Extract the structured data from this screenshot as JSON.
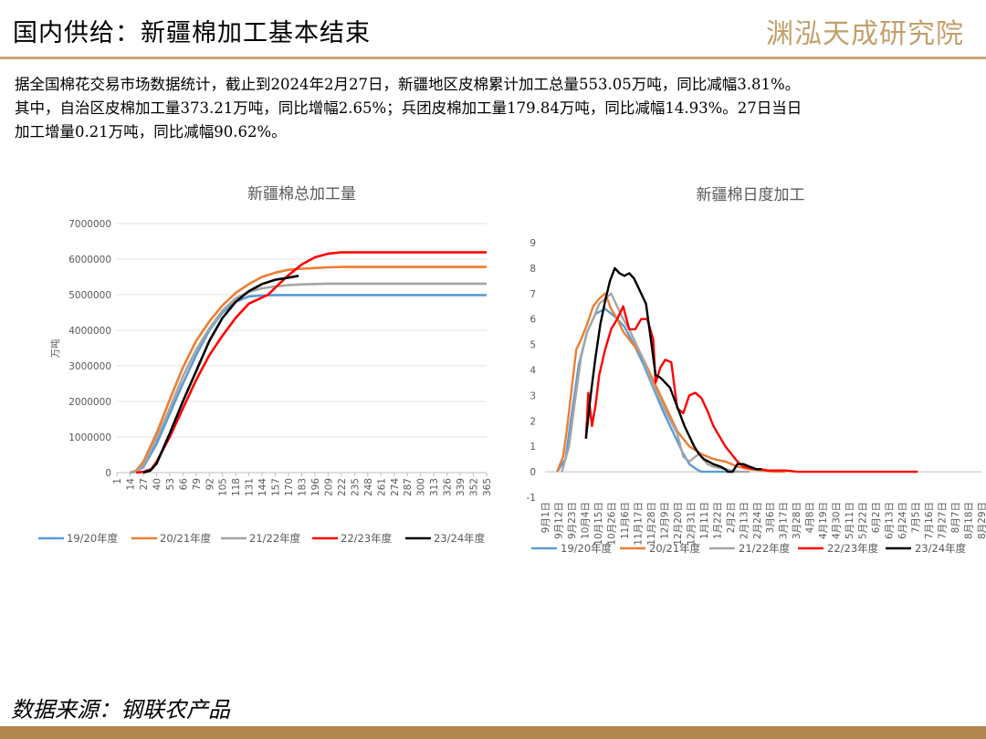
{
  "header": {
    "title": "国内供给：新疆棉加工基本结束",
    "logo_text": "渊泓天成研究院"
  },
  "summary": {
    "line1": "据全国棉花交易市场数据统计，截止到2024年2月27日，新疆地区皮棉累计加工总量553.05万吨，同比减幅3.81%。",
    "line2": "其中，自治区皮棉加工量373.21万吨，同比增幅2.65%；兵团皮棉加工量179.84万吨，同比减幅14.93%。27日当日",
    "line3": "加工增量0.21万吨，同比减幅90.62%。"
  },
  "source": "数据来源：钢联农产品",
  "colors": {
    "19/20年度": "#5b9bd5",
    "20/21年度": "#ed7d31",
    "21/22年度": "#a5a5a5",
    "22/23年度": "#ff0000",
    "23/24年度": "#000000",
    "brand": "#c7a574"
  },
  "chart_data": [
    {
      "type": "line",
      "title": "新疆棉总加工量",
      "ylabel": "万吨",
      "ylim": [
        0,
        7000000
      ],
      "yticks": [
        "7000000",
        "6000000",
        "5000000",
        "4000000",
        "3000000",
        "2000000",
        "1000000",
        "0"
      ],
      "xlim": [
        1,
        365
      ],
      "xticks": [
        "1",
        "14",
        "27",
        "40",
        "53",
        "66",
        "79",
        "92",
        "105",
        "118",
        "131",
        "144",
        "157",
        "170",
        "183",
        "196",
        "209",
        "222",
        "235",
        "248",
        "261",
        "274",
        "287",
        "300",
        "313",
        "326",
        "339",
        "352",
        "365"
      ],
      "legend_position": "bottom",
      "series": [
        {
          "name": "19/20年度",
          "x": [
            14,
            20,
            27,
            40,
            53,
            66,
            79,
            92,
            105,
            118,
            131,
            144,
            157,
            365
          ],
          "y": [
            0,
            30000,
            150000,
            800000,
            1650000,
            2500000,
            3300000,
            4000000,
            4500000,
            4800000,
            4950000,
            4980000,
            4990000,
            4990000
          ]
        },
        {
          "name": "20/21年度",
          "x": [
            14,
            20,
            27,
            40,
            53,
            66,
            79,
            92,
            105,
            118,
            131,
            144,
            157,
            170,
            183,
            196,
            209,
            222,
            365
          ],
          "y": [
            0,
            50000,
            300000,
            1100000,
            2050000,
            2950000,
            3700000,
            4250000,
            4700000,
            5050000,
            5300000,
            5500000,
            5620000,
            5700000,
            5730000,
            5750000,
            5770000,
            5780000,
            5780000
          ]
        },
        {
          "name": "21/22年度",
          "x": [
            14,
            20,
            27,
            40,
            53,
            66,
            79,
            92,
            105,
            118,
            131,
            144,
            157,
            170,
            183,
            196,
            209,
            365
          ],
          "y": [
            0,
            20000,
            200000,
            950000,
            1800000,
            2700000,
            3450000,
            4050000,
            4550000,
            4900000,
            5080000,
            5180000,
            5230000,
            5270000,
            5290000,
            5300000,
            5310000,
            5310000
          ]
        },
        {
          "name": "22/23年度",
          "x": [
            20,
            27,
            35,
            40,
            53,
            66,
            79,
            92,
            105,
            118,
            131,
            144,
            150,
            157,
            170,
            183,
            196,
            209,
            222,
            365
          ],
          "y": [
            0,
            20000,
            100000,
            300000,
            1000000,
            1800000,
            2600000,
            3300000,
            3850000,
            4350000,
            4750000,
            4920000,
            5000000,
            5200000,
            5550000,
            5850000,
            6050000,
            6150000,
            6190000,
            6190000
          ]
        },
        {
          "name": "23/24年度",
          "x": [
            27,
            34,
            40,
            53,
            66,
            79,
            92,
            105,
            118,
            131,
            144,
            157,
            170,
            180
          ],
          "y": [
            0,
            60000,
            250000,
            1100000,
            2000000,
            2850000,
            3700000,
            4350000,
            4800000,
            5100000,
            5300000,
            5420000,
            5480000,
            5530500
          ]
        }
      ]
    },
    {
      "type": "line",
      "title": "新疆棉日度加工",
      "ylim": [
        -1,
        9
      ],
      "yticks": [
        "9",
        "8",
        "7",
        "6",
        "5",
        "4",
        "3",
        "2",
        "1",
        "0",
        "-1"
      ],
      "xticks": [
        "9月1日",
        "9月12日",
        "9月23日",
        "10月4日",
        "10月15日",
        "10月26日",
        "11月6日",
        "11月17日",
        "11月28日",
        "12月9日",
        "12月20日",
        "12月31日",
        "1月11日",
        "1月22日",
        "2月2日",
        "2月13日",
        "2月24日",
        "3月6日",
        "3月17日",
        "3月28日",
        "4月8日",
        "4月19日",
        "4月30日",
        "5月11日",
        "5月22日",
        "6月2日",
        "6月13日",
        "6月24日",
        "7月5日",
        "7月16日",
        "7月27日",
        "8月7日",
        "8月18日",
        "8月29日"
      ],
      "legend_position": "bottom",
      "series": [
        {
          "name": "19/20年度",
          "x": [
            10,
            17,
            22,
            28,
            35,
            42,
            50,
            58,
            66,
            74,
            82,
            90,
            98,
            106,
            114,
            120,
            126,
            130,
            140,
            150,
            160
          ],
          "y": [
            0,
            0.5,
            2.2,
            4.2,
            5.5,
            6.2,
            6.4,
            6.1,
            5.7,
            5.0,
            4.2,
            3.3,
            2.4,
            1.6,
            0.8,
            0.3,
            0.1,
            0,
            0,
            0,
            0
          ]
        },
        {
          "name": "20/21年度",
          "x": [
            10,
            15,
            18,
            22,
            26,
            30,
            35,
            40,
            45,
            50,
            55,
            60,
            65,
            70,
            80,
            90,
            100,
            110,
            120,
            130,
            140,
            150,
            160,
            170,
            180,
            190,
            200
          ],
          "y": [
            0,
            0.6,
            1.6,
            3.2,
            4.8,
            5.2,
            5.8,
            6.5,
            6.8,
            7.0,
            6.4,
            6.0,
            5.5,
            5.2,
            4.6,
            3.6,
            2.6,
            1.6,
            1.0,
            0.7,
            0.5,
            0.4,
            0.2,
            0.1,
            0.05,
            0,
            0
          ]
        },
        {
          "name": "21/22年度",
          "x": [
            14,
            20,
            25,
            30,
            35,
            40,
            45,
            50,
            55,
            60,
            65,
            70,
            80,
            90,
            100,
            110,
            115,
            120,
            128,
            135,
            140,
            150,
            160,
            170
          ],
          "y": [
            0,
            1.0,
            2.8,
            4.5,
            5.5,
            6.0,
            6.6,
            6.8,
            7.0,
            6.5,
            6.0,
            5.6,
            4.6,
            3.4,
            2.4,
            1.5,
            0.6,
            0.4,
            0.7,
            0.3,
            0.2,
            0.1,
            0,
            0
          ]
        },
        {
          "name": "22/23年度",
          "x": [
            34,
            36,
            39,
            42,
            45,
            50,
            55,
            60,
            65,
            70,
            75,
            80,
            85,
            90,
            92,
            96,
            100,
            105,
            110,
            115,
            120,
            125,
            130,
            135,
            140,
            145,
            150,
            155,
            160,
            165,
            170,
            175,
            180,
            185,
            190,
            195,
            200,
            210,
            220,
            240,
            260,
            280,
            310
          ],
          "y": [
            1.3,
            3.1,
            1.8,
            2.6,
            3.8,
            4.8,
            5.6,
            6.0,
            6.5,
            5.6,
            5.6,
            6.0,
            6.0,
            5.2,
            3.5,
            4.1,
            4.4,
            4.3,
            2.5,
            2.3,
            3.0,
            3.1,
            2.9,
            2.4,
            1.8,
            1.4,
            1.0,
            0.7,
            0.4,
            0.2,
            0.15,
            0.1,
            0.1,
            0.05,
            0.05,
            0.05,
            0.05,
            0,
            0,
            0,
            0,
            0,
            0
          ]
        },
        {
          "name": "23/24年度",
          "x": [
            34,
            38,
            42,
            46,
            50,
            54,
            58,
            62,
            66,
            70,
            74,
            78,
            80,
            84,
            88,
            92,
            96,
            100,
            104,
            108,
            112,
            116,
            120,
            124,
            128,
            132,
            136,
            140,
            146,
            150,
            152,
            156,
            160,
            165,
            170,
            176,
            180
          ],
          "y": [
            1.3,
            3.0,
            4.5,
            5.8,
            6.7,
            7.5,
            8.0,
            7.8,
            7.7,
            7.8,
            7.6,
            7.2,
            7.0,
            6.6,
            5.2,
            3.8,
            3.7,
            3.5,
            3.3,
            2.8,
            2.3,
            1.8,
            1.4,
            1.0,
            0.7,
            0.5,
            0.4,
            0.3,
            0.2,
            0.1,
            0,
            0,
            0.3,
            0.3,
            0.2,
            0.1,
            0.1
          ]
        }
      ]
    }
  ]
}
